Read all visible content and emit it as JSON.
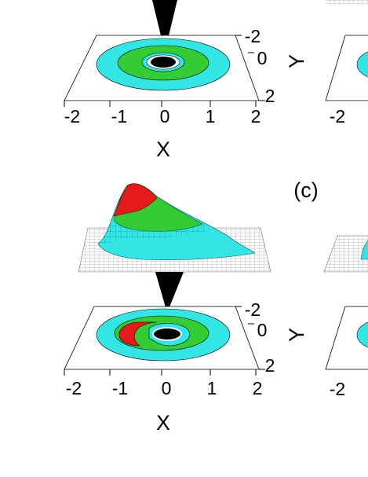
{
  "panels": [
    {
      "x_ticks": [
        "-2",
        "-1",
        "0",
        "1",
        "2"
      ],
      "x_label": "X",
      "y_ticks": [
        "-2",
        "0",
        "2"
      ]
    },
    {
      "x_ticks": [
        "-2"
      ],
      "y_label": "Y"
    },
    {
      "x_ticks": [
        "-2",
        "-1",
        "0",
        "1",
        "2"
      ],
      "x_label": "X",
      "y_ticks": [
        "-2",
        "0",
        "2"
      ]
    },
    {
      "x_ticks": [
        "-2"
      ],
      "y_label": "Y"
    }
  ],
  "panel_label": "(c)"
}
